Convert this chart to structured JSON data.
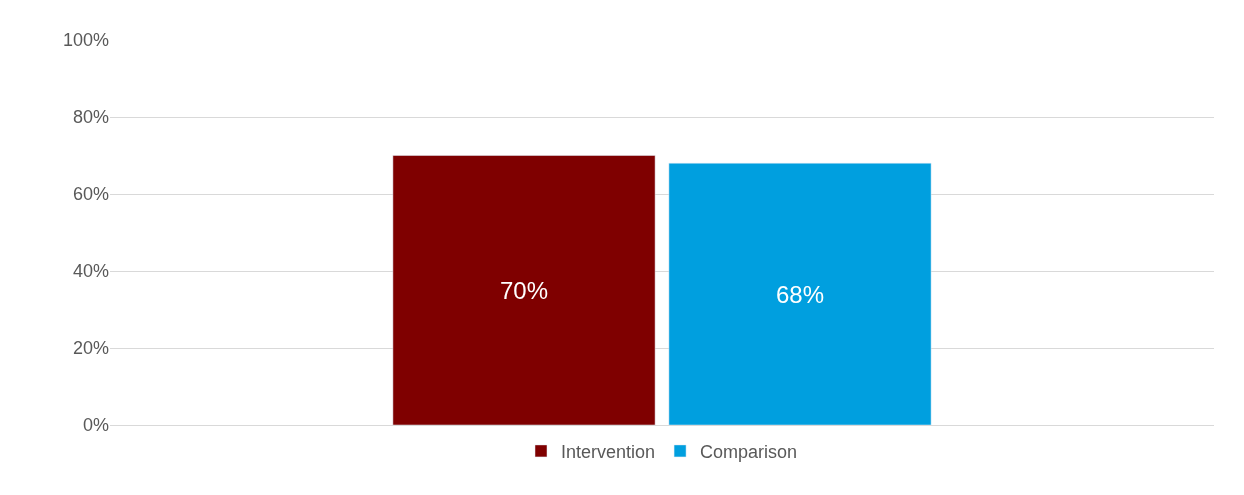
{
  "chart_data": {
    "type": "bar",
    "categories": [
      null
    ],
    "series": [
      {
        "name": "Intervention",
        "color": "#7f0000",
        "values": [
          70
        ],
        "value_labels": [
          "70%"
        ]
      },
      {
        "name": "Comparison",
        "color": "#009fdf",
        "values": [
          68
        ],
        "value_labels": [
          "68%"
        ]
      }
    ],
    "ylim": [
      0,
      100
    ],
    "yticks": [
      {
        "value": 0,
        "label": "0%"
      },
      {
        "value": 20,
        "label": "20%"
      },
      {
        "value": 40,
        "label": "40%"
      },
      {
        "value": 60,
        "label": "60%"
      },
      {
        "value": 80,
        "label": "80%"
      },
      {
        "value": 100,
        "label": "100%"
      }
    ],
    "grid": "y",
    "legend": "bottom"
  }
}
